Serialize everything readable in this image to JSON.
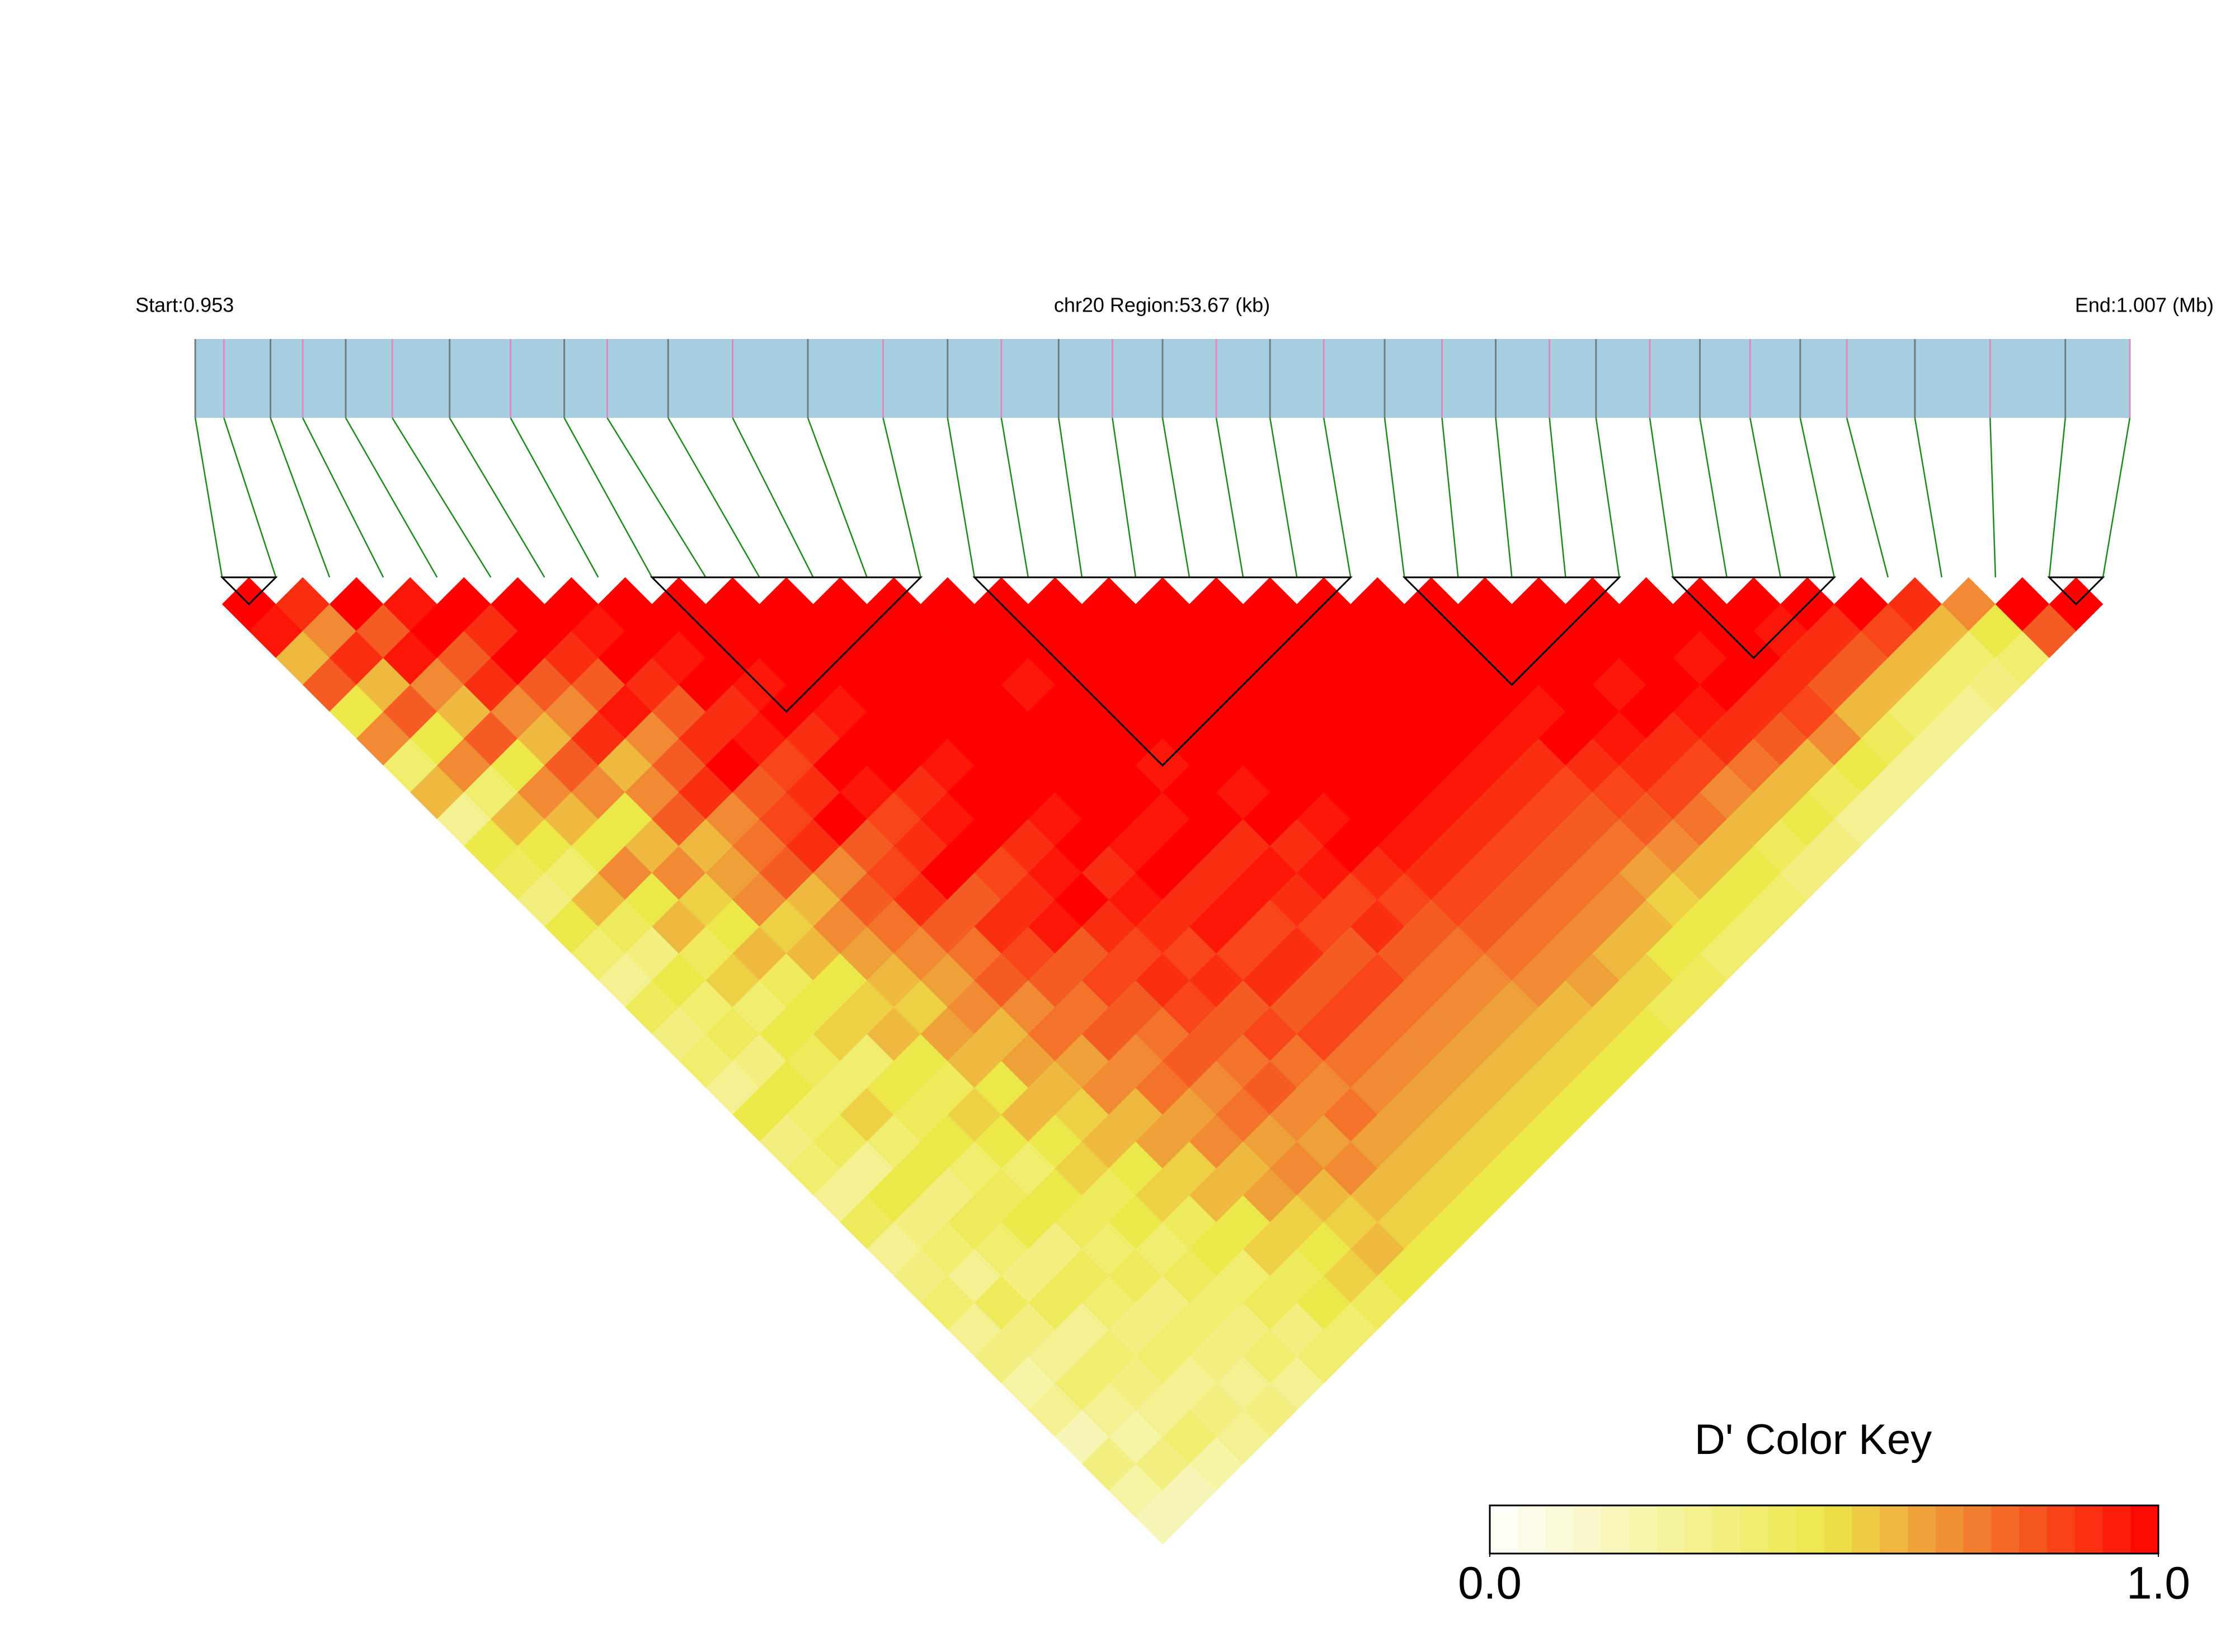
{
  "chart_data": {
    "type": "ld-heatmap",
    "start_label": "Start:0.953",
    "region_label": "chr20 Region:53.67 (kb)",
    "end_label": "End:1.007 (Mb)",
    "xlim": [
      0.953,
      1.007
    ],
    "positions": [
      0.953,
      0.9538,
      0.9551,
      0.956,
      0.9572,
      0.9585,
      0.9601,
      0.9618,
      0.9633,
      0.9645,
      0.9662,
      0.968,
      0.9701,
      0.9722,
      0.974,
      0.9755,
      0.9771,
      0.9786,
      0.98,
      0.9815,
      0.983,
      0.9845,
      0.9862,
      0.9878,
      0.9893,
      0.9908,
      0.9921,
      0.9936,
      0.995,
      0.9964,
      0.9978,
      0.9991,
      1.001,
      1.0031,
      1.0052,
      1.007
    ],
    "bar_color": "#a6cde0",
    "tick_colors": [
      "#6f7f7f",
      "#e088c0"
    ],
    "connector_color": "#1a8a1a",
    "block_color": "#000000",
    "dprime": [
      [
        1,
        0.95,
        0.6,
        0.8,
        0.5,
        0.7,
        0.4,
        0.6,
        0.3,
        0.5,
        0.45,
        0.35,
        0.5,
        0.4,
        0.3,
        0.45,
        0.35,
        0.4,
        0.3,
        0.5,
        0.35,
        0.4,
        0.3,
        0.45,
        0.3,
        0.35,
        0.4,
        0.3,
        0.35,
        0.25,
        0.3,
        0.2,
        0.35,
        0.25,
        0.2
      ],
      [
        0.9,
        0.7,
        0.9,
        0.6,
        0.8,
        0.5,
        0.7,
        0.4,
        0.6,
        0.5,
        0.4,
        0.6,
        0.45,
        0.35,
        0.5,
        0.4,
        0.45,
        0.35,
        0.5,
        0.4,
        0.45,
        0.3,
        0.5,
        0.35,
        0.4,
        0.3,
        0.45,
        0.35,
        0.3,
        0.4,
        0.3,
        0.25,
        0.35,
        0.2
      ],
      [
        1,
        0.8,
        0.95,
        0.7,
        0.6,
        0.8,
        0.5,
        0.7,
        0.6,
        0.5,
        0.7,
        0.5,
        0.6,
        0.45,
        0.55,
        0.4,
        0.5,
        0.45,
        0.4,
        0.55,
        0.4,
        0.5,
        0.35,
        0.45,
        0.4,
        0.35,
        0.45,
        0.3,
        0.4,
        0.35,
        0.3,
        0.4,
        0.25
      ],
      [
        0.95,
        1,
        0.8,
        0.9,
        0.7,
        0.6,
        0.8,
        0.7,
        0.5,
        0.6,
        0.7,
        0.55,
        0.5,
        0.6,
        0.45,
        0.5,
        0.55,
        0.4,
        0.5,
        0.45,
        0.5,
        0.4,
        0.45,
        0.5,
        0.35,
        0.45,
        0.4,
        0.35,
        0.4,
        0.3,
        0.35,
        0.3
      ],
      [
        1,
        0.9,
        1,
        0.8,
        0.7,
        0.9,
        0.6,
        0.7,
        0.8,
        0.6,
        0.65,
        0.7,
        0.55,
        0.6,
        0.5,
        0.55,
        0.6,
        0.5,
        0.45,
        0.55,
        0.5,
        0.4,
        0.5,
        0.45,
        0.4,
        0.45,
        0.35,
        0.4,
        0.35,
        0.3,
        0.35
      ],
      [
        1,
        1,
        0.9,
        0.8,
        0.95,
        0.7,
        0.8,
        0.9,
        0.7,
        0.75,
        0.8,
        0.6,
        0.7,
        0.65,
        0.6,
        0.55,
        0.65,
        0.6,
        0.5,
        0.6,
        0.5,
        0.55,
        0.45,
        0.5,
        0.4,
        0.45,
        0.4,
        0.35,
        0.4,
        0.3
      ],
      [
        1,
        0.95,
        1,
        0.9,
        0.8,
        0.9,
        1,
        0.8,
        0.85,
        0.9,
        0.7,
        0.8,
        0.75,
        0.7,
        0.65,
        0.7,
        0.6,
        0.65,
        0.6,
        0.55,
        0.6,
        0.5,
        0.55,
        0.45,
        0.5,
        0.4,
        0.45,
        0.35,
        0.4
      ],
      [
        1,
        1,
        0.95,
        1,
        0.9,
        0.95,
        0.85,
        0.9,
        1,
        0.8,
        0.85,
        0.9,
        0.8,
        0.75,
        0.8,
        0.7,
        0.75,
        0.65,
        0.7,
        0.6,
        0.65,
        0.55,
        0.6,
        0.5,
        0.55,
        0.45,
        0.5,
        0.4
      ],
      [
        1,
        1,
        1,
        0.95,
        1,
        0.9,
        1,
        0.95,
        0.85,
        0.9,
        1,
        0.8,
        0.9,
        0.85,
        0.8,
        0.75,
        0.8,
        0.7,
        0.75,
        0.65,
        0.7,
        0.6,
        0.65,
        0.55,
        0.5,
        0.55,
        0.45
      ],
      [
        1,
        1,
        1,
        1,
        0.95,
        1,
        1,
        0.9,
        0.95,
        1,
        0.85,
        0.9,
        0.95,
        0.8,
        0.85,
        0.8,
        0.75,
        0.8,
        0.7,
        0.75,
        0.65,
        0.7,
        0.6,
        0.55,
        0.6,
        0.5
      ],
      [
        1,
        1,
        1,
        1,
        1,
        1,
        0.95,
        1,
        1,
        0.9,
        0.95,
        1,
        0.9,
        0.85,
        0.9,
        0.85,
        0.8,
        0.75,
        0.8,
        0.7,
        0.65,
        0.7,
        0.6,
        0.55,
        0.5
      ],
      [
        1,
        1,
        1,
        1,
        1,
        1,
        1,
        1,
        0.95,
        1,
        0.9,
        0.95,
        0.9,
        0.85,
        0.9,
        0.8,
        0.85,
        0.75,
        0.7,
        0.75,
        0.65,
        0.6,
        0.55,
        0.5
      ],
      [
        1,
        1,
        1,
        1,
        1,
        1,
        1,
        1,
        1,
        0.95,
        1,
        0.9,
        0.95,
        0.85,
        0.9,
        0.8,
        0.85,
        0.75,
        0.7,
        0.65,
        0.6,
        0.55,
        0.5
      ],
      [
        1,
        1,
        1,
        0.95,
        1,
        1,
        1,
        1,
        0.95,
        1,
        0.9,
        0.95,
        0.85,
        0.9,
        0.8,
        0.85,
        0.75,
        0.7,
        0.65,
        0.6,
        0.55,
        0.5
      ],
      [
        1,
        1,
        1,
        1,
        1,
        1,
        0.95,
        1,
        1,
        0.9,
        0.95,
        0.9,
        0.85,
        0.8,
        0.85,
        0.75,
        0.7,
        0.65,
        0.6,
        0.55,
        0.5
      ],
      [
        1,
        1,
        1,
        1,
        1,
        1,
        1,
        0.95,
        1,
        0.9,
        0.95,
        0.85,
        0.9,
        0.8,
        0.75,
        0.7,
        0.65,
        0.6,
        0.55,
        0.5
      ],
      [
        1,
        1,
        1,
        1,
        1,
        1,
        1,
        1,
        0.95,
        1,
        0.9,
        0.85,
        0.8,
        0.75,
        0.7,
        0.65,
        0.6,
        0.55,
        0.5
      ],
      [
        1,
        1,
        1,
        1,
        1,
        1,
        1,
        1,
        1,
        0.95,
        0.9,
        0.85,
        0.8,
        0.75,
        0.7,
        0.6,
        0.55,
        0.5
      ],
      [
        1,
        1,
        1,
        1,
        1,
        1,
        1,
        1,
        0.95,
        0.9,
        0.85,
        0.8,
        0.75,
        0.7,
        0.65,
        0.55,
        0.5
      ],
      [
        1,
        1,
        1,
        1,
        1,
        1,
        1,
        0.95,
        0.9,
        0.85,
        0.8,
        0.75,
        0.7,
        0.6,
        0.55,
        0.45
      ],
      [
        1,
        1,
        1,
        1,
        1,
        1,
        0.95,
        0.9,
        0.85,
        0.8,
        0.75,
        0.7,
        0.6,
        0.5,
        0.45
      ],
      [
        1,
        1,
        1,
        1,
        1,
        0.95,
        0.9,
        0.85,
        0.8,
        0.75,
        0.65,
        0.55,
        0.5,
        0.4
      ],
      [
        1,
        1,
        1,
        1,
        0.95,
        1,
        0.9,
        0.85,
        0.8,
        0.7,
        0.6,
        0.5,
        0.4
      ],
      [
        1,
        1,
        1,
        1,
        1,
        0.95,
        0.9,
        0.85,
        0.75,
        0.6,
        0.5,
        0.4
      ],
      [
        1,
        1,
        1,
        0.95,
        1,
        0.9,
        0.85,
        0.7,
        0.6,
        0.45,
        0.35
      ],
      [
        1,
        1,
        1,
        1,
        0.95,
        0.9,
        0.75,
        0.6,
        0.5,
        0.35
      ],
      [
        1,
        1,
        0.95,
        1,
        0.9,
        0.8,
        0.6,
        0.45,
        0.3
      ],
      [
        1,
        1,
        1,
        0.9,
        0.85,
        0.7,
        0.5,
        0.3
      ],
      [
        1,
        0.95,
        0.9,
        0.8,
        0.6,
        0.45,
        0.3
      ],
      [
        1,
        0.9,
        0.8,
        0.6,
        0.4,
        0.3
      ],
      [
        1,
        0.85,
        0.6,
        0.4,
        0.3
      ],
      [
        0.9,
        0.6,
        0.4,
        0.35
      ],
      [
        0.7,
        0.5,
        0.4
      ],
      [
        1,
        0.8
      ],
      [
        1
      ]
    ],
    "blocks": [
      [
        0,
        1
      ],
      [
        8,
        13
      ],
      [
        14,
        21
      ],
      [
        22,
        26
      ],
      [
        27,
        30
      ],
      [
        34,
        35
      ]
    ],
    "color_stops": [
      {
        "value": 0,
        "color": "#ffffff"
      },
      {
        "value": 0.5,
        "color": "#ede84a"
      },
      {
        "value": 0.7,
        "color": "#f08a34"
      },
      {
        "value": 1,
        "color": "#ff0000"
      }
    ],
    "key_title": "D' Color Key",
    "key_ticks": [
      {
        "value": 0,
        "label": "0.0"
      },
      {
        "value": 1,
        "label": "1.0"
      }
    ]
  }
}
